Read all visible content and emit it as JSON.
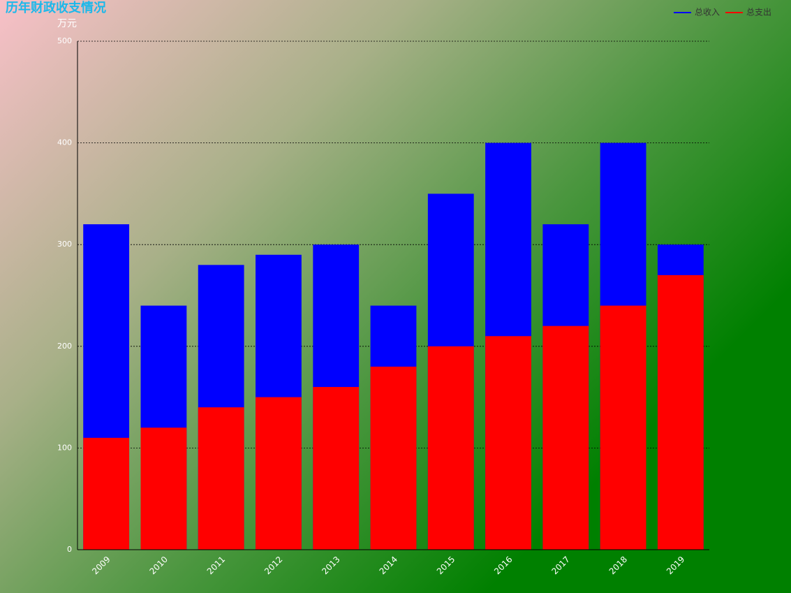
{
  "chart_data": {
    "type": "bar",
    "title": "历年财政收支情况",
    "y_label": "万元",
    "categories": [
      "2009",
      "2010",
      "2011",
      "2012",
      "2013",
      "2014",
      "2015",
      "2016",
      "2017",
      "2018",
      "2019"
    ],
    "series": [
      {
        "name": "总收入",
        "color": "#0000ff",
        "values": [
          320,
          240,
          280,
          290,
          300,
          240,
          350,
          400,
          320,
          400,
          300
        ]
      },
      {
        "name": "总支出",
        "color": "#ff0000",
        "values": [
          110,
          120,
          140,
          150,
          160,
          180,
          200,
          210,
          220,
          240,
          270
        ]
      }
    ],
    "bar_mode": "overlap",
    "ylim": [
      0,
      500
    ],
    "yticks": [
      0,
      100,
      200,
      300,
      400,
      500
    ],
    "grid": true,
    "legend": "top-right"
  }
}
